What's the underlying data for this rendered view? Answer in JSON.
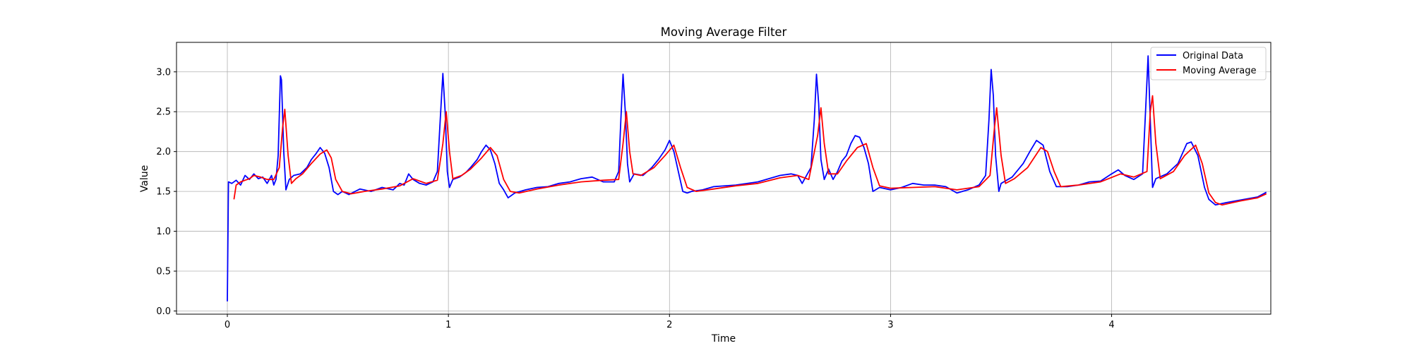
{
  "chart_data": {
    "type": "line",
    "title": "Moving Average Filter",
    "xlabel": "Time",
    "ylabel": "Value",
    "xlim": [
      -0.23,
      4.72
    ],
    "ylim": [
      -0.04,
      3.37
    ],
    "xticks": [
      0,
      1,
      2,
      3,
      4
    ],
    "yticks": [
      0.0,
      0.5,
      1.0,
      1.5,
      2.0,
      2.5,
      3.0
    ],
    "xtick_labels": [
      "0",
      "1",
      "2",
      "3",
      "4"
    ],
    "ytick_labels": [
      "0.0",
      "0.5",
      "1.0",
      "1.5",
      "2.0",
      "2.5",
      "3.0"
    ],
    "grid": true,
    "legend_position": "top-right",
    "colors": {
      "original": "#0000ff",
      "moving_average": "#ff0000"
    },
    "series": [
      {
        "name": "Original Data",
        "color": "#0000ff",
        "points": [
          [
            0.0,
            0.12
          ],
          [
            0.005,
            1.62
          ],
          [
            0.02,
            1.6
          ],
          [
            0.04,
            1.64
          ],
          [
            0.06,
            1.58
          ],
          [
            0.08,
            1.7
          ],
          [
            0.1,
            1.65
          ],
          [
            0.12,
            1.72
          ],
          [
            0.14,
            1.66
          ],
          [
            0.16,
            1.68
          ],
          [
            0.18,
            1.6
          ],
          [
            0.2,
            1.7
          ],
          [
            0.21,
            1.58
          ],
          [
            0.22,
            1.65
          ],
          [
            0.23,
            1.95
          ],
          [
            0.24,
            2.95
          ],
          [
            0.245,
            2.9
          ],
          [
            0.255,
            2.0
          ],
          [
            0.265,
            1.52
          ],
          [
            0.28,
            1.65
          ],
          [
            0.3,
            1.7
          ],
          [
            0.33,
            1.72
          ],
          [
            0.36,
            1.8
          ],
          [
            0.38,
            1.9
          ],
          [
            0.4,
            1.97
          ],
          [
            0.42,
            2.05
          ],
          [
            0.44,
            1.98
          ],
          [
            0.46,
            1.8
          ],
          [
            0.48,
            1.5
          ],
          [
            0.5,
            1.46
          ],
          [
            0.52,
            1.5
          ],
          [
            0.55,
            1.46
          ],
          [
            0.6,
            1.53
          ],
          [
            0.65,
            1.5
          ],
          [
            0.7,
            1.55
          ],
          [
            0.75,
            1.52
          ],
          [
            0.78,
            1.6
          ],
          [
            0.8,
            1.58
          ],
          [
            0.82,
            1.72
          ],
          [
            0.84,
            1.65
          ],
          [
            0.87,
            1.6
          ],
          [
            0.9,
            1.58
          ],
          [
            0.93,
            1.62
          ],
          [
            0.95,
            1.75
          ],
          [
            0.965,
            2.5
          ],
          [
            0.975,
            2.98
          ],
          [
            0.985,
            2.5
          ],
          [
            0.995,
            1.75
          ],
          [
            1.005,
            1.55
          ],
          [
            1.02,
            1.65
          ],
          [
            1.05,
            1.68
          ],
          [
            1.08,
            1.74
          ],
          [
            1.1,
            1.8
          ],
          [
            1.13,
            1.9
          ],
          [
            1.15,
            2.0
          ],
          [
            1.17,
            2.08
          ],
          [
            1.19,
            2.02
          ],
          [
            1.21,
            1.85
          ],
          [
            1.23,
            1.6
          ],
          [
            1.25,
            1.52
          ],
          [
            1.27,
            1.42
          ],
          [
            1.3,
            1.48
          ],
          [
            1.35,
            1.52
          ],
          [
            1.4,
            1.55
          ],
          [
            1.45,
            1.56
          ],
          [
            1.5,
            1.6
          ],
          [
            1.55,
            1.62
          ],
          [
            1.6,
            1.66
          ],
          [
            1.65,
            1.68
          ],
          [
            1.7,
            1.62
          ],
          [
            1.75,
            1.62
          ],
          [
            1.77,
            1.75
          ],
          [
            1.78,
            2.4
          ],
          [
            1.79,
            2.97
          ],
          [
            1.8,
            2.5
          ],
          [
            1.81,
            1.85
          ],
          [
            1.82,
            1.62
          ],
          [
            1.84,
            1.72
          ],
          [
            1.88,
            1.7
          ],
          [
            1.92,
            1.8
          ],
          [
            1.95,
            1.9
          ],
          [
            1.98,
            2.02
          ],
          [
            2.0,
            2.14
          ],
          [
            2.02,
            2.0
          ],
          [
            2.04,
            1.75
          ],
          [
            2.06,
            1.5
          ],
          [
            2.08,
            1.48
          ],
          [
            2.1,
            1.5
          ],
          [
            2.15,
            1.52
          ],
          [
            2.2,
            1.56
          ],
          [
            2.3,
            1.58
          ],
          [
            2.4,
            1.62
          ],
          [
            2.5,
            1.7
          ],
          [
            2.55,
            1.72
          ],
          [
            2.58,
            1.7
          ],
          [
            2.6,
            1.6
          ],
          [
            2.62,
            1.7
          ],
          [
            2.64,
            1.8
          ],
          [
            2.655,
            2.4
          ],
          [
            2.665,
            2.97
          ],
          [
            2.675,
            2.6
          ],
          [
            2.685,
            1.9
          ],
          [
            2.7,
            1.65
          ],
          [
            2.72,
            1.78
          ],
          [
            2.74,
            1.65
          ],
          [
            2.76,
            1.75
          ],
          [
            2.78,
            1.88
          ],
          [
            2.8,
            1.95
          ],
          [
            2.82,
            2.1
          ],
          [
            2.84,
            2.2
          ],
          [
            2.86,
            2.18
          ],
          [
            2.88,
            2.05
          ],
          [
            2.9,
            1.85
          ],
          [
            2.92,
            1.5
          ],
          [
            2.95,
            1.55
          ],
          [
            3.0,
            1.52
          ],
          [
            3.05,
            1.55
          ],
          [
            3.1,
            1.6
          ],
          [
            3.15,
            1.58
          ],
          [
            3.2,
            1.58
          ],
          [
            3.25,
            1.56
          ],
          [
            3.3,
            1.48
          ],
          [
            3.35,
            1.52
          ],
          [
            3.4,
            1.58
          ],
          [
            3.43,
            1.7
          ],
          [
            3.445,
            2.4
          ],
          [
            3.455,
            3.03
          ],
          [
            3.465,
            2.7
          ],
          [
            3.475,
            1.95
          ],
          [
            3.49,
            1.5
          ],
          [
            3.5,
            1.6
          ],
          [
            3.55,
            1.68
          ],
          [
            3.6,
            1.85
          ],
          [
            3.63,
            2.0
          ],
          [
            3.66,
            2.14
          ],
          [
            3.69,
            2.08
          ],
          [
            3.72,
            1.75
          ],
          [
            3.75,
            1.56
          ],
          [
            3.8,
            1.56
          ],
          [
            3.85,
            1.58
          ],
          [
            3.9,
            1.62
          ],
          [
            3.95,
            1.63
          ],
          [
            4.0,
            1.72
          ],
          [
            4.03,
            1.77
          ],
          [
            4.06,
            1.7
          ],
          [
            4.1,
            1.65
          ],
          [
            4.14,
            1.72
          ],
          [
            4.155,
            2.6
          ],
          [
            4.165,
            3.2
          ],
          [
            4.175,
            2.4
          ],
          [
            4.185,
            1.55
          ],
          [
            4.2,
            1.66
          ],
          [
            4.25,
            1.72
          ],
          [
            4.3,
            1.85
          ],
          [
            4.34,
            2.1
          ],
          [
            4.36,
            2.12
          ],
          [
            4.39,
            1.95
          ],
          [
            4.42,
            1.55
          ],
          [
            4.44,
            1.4
          ],
          [
            4.47,
            1.33
          ],
          [
            4.52,
            1.36
          ],
          [
            4.6,
            1.4
          ],
          [
            4.66,
            1.43
          ],
          [
            4.7,
            1.49
          ]
        ]
      },
      {
        "name": "Moving Average",
        "color": "#ff0000",
        "points": [
          [
            0.03,
            1.4
          ],
          [
            0.04,
            1.58
          ],
          [
            0.06,
            1.62
          ],
          [
            0.08,
            1.64
          ],
          [
            0.1,
            1.66
          ],
          [
            0.12,
            1.7
          ],
          [
            0.15,
            1.68
          ],
          [
            0.18,
            1.65
          ],
          [
            0.21,
            1.65
          ],
          [
            0.235,
            1.8
          ],
          [
            0.25,
            2.3
          ],
          [
            0.26,
            2.53
          ],
          [
            0.275,
            1.95
          ],
          [
            0.29,
            1.6
          ],
          [
            0.31,
            1.66
          ],
          [
            0.34,
            1.72
          ],
          [
            0.38,
            1.85
          ],
          [
            0.42,
            1.97
          ],
          [
            0.45,
            2.02
          ],
          [
            0.47,
            1.92
          ],
          [
            0.49,
            1.65
          ],
          [
            0.52,
            1.5
          ],
          [
            0.56,
            1.47
          ],
          [
            0.62,
            1.5
          ],
          [
            0.7,
            1.53
          ],
          [
            0.78,
            1.57
          ],
          [
            0.84,
            1.66
          ],
          [
            0.9,
            1.6
          ],
          [
            0.95,
            1.64
          ],
          [
            0.975,
            2.1
          ],
          [
            0.99,
            2.5
          ],
          [
            1.005,
            2.0
          ],
          [
            1.02,
            1.66
          ],
          [
            1.06,
            1.7
          ],
          [
            1.1,
            1.78
          ],
          [
            1.15,
            1.92
          ],
          [
            1.19,
            2.05
          ],
          [
            1.22,
            1.95
          ],
          [
            1.25,
            1.65
          ],
          [
            1.28,
            1.5
          ],
          [
            1.32,
            1.48
          ],
          [
            1.4,
            1.53
          ],
          [
            1.5,
            1.58
          ],
          [
            1.6,
            1.62
          ],
          [
            1.7,
            1.64
          ],
          [
            1.77,
            1.65
          ],
          [
            1.79,
            2.1
          ],
          [
            1.805,
            2.5
          ],
          [
            1.82,
            2.0
          ],
          [
            1.835,
            1.72
          ],
          [
            1.87,
            1.7
          ],
          [
            1.93,
            1.8
          ],
          [
            1.98,
            1.95
          ],
          [
            2.02,
            2.08
          ],
          [
            2.05,
            1.8
          ],
          [
            2.08,
            1.55
          ],
          [
            2.12,
            1.5
          ],
          [
            2.2,
            1.53
          ],
          [
            2.3,
            1.57
          ],
          [
            2.4,
            1.6
          ],
          [
            2.5,
            1.67
          ],
          [
            2.58,
            1.7
          ],
          [
            2.63,
            1.65
          ],
          [
            2.67,
            2.2
          ],
          [
            2.685,
            2.55
          ],
          [
            2.7,
            2.1
          ],
          [
            2.72,
            1.72
          ],
          [
            2.76,
            1.72
          ],
          [
            2.8,
            1.88
          ],
          [
            2.85,
            2.05
          ],
          [
            2.89,
            2.1
          ],
          [
            2.92,
            1.8
          ],
          [
            2.95,
            1.57
          ],
          [
            3.0,
            1.54
          ],
          [
            3.1,
            1.55
          ],
          [
            3.2,
            1.56
          ],
          [
            3.3,
            1.52
          ],
          [
            3.4,
            1.56
          ],
          [
            3.45,
            1.7
          ],
          [
            3.47,
            2.3
          ],
          [
            3.48,
            2.55
          ],
          [
            3.5,
            1.95
          ],
          [
            3.52,
            1.6
          ],
          [
            3.56,
            1.66
          ],
          [
            3.62,
            1.8
          ],
          [
            3.68,
            2.05
          ],
          [
            3.71,
            2.0
          ],
          [
            3.74,
            1.75
          ],
          [
            3.77,
            1.56
          ],
          [
            3.85,
            1.58
          ],
          [
            3.95,
            1.62
          ],
          [
            4.04,
            1.72
          ],
          [
            4.1,
            1.68
          ],
          [
            4.16,
            1.75
          ],
          [
            4.175,
            2.5
          ],
          [
            4.185,
            2.7
          ],
          [
            4.2,
            2.1
          ],
          [
            4.22,
            1.66
          ],
          [
            4.28,
            1.75
          ],
          [
            4.33,
            1.95
          ],
          [
            4.38,
            2.08
          ],
          [
            4.41,
            1.85
          ],
          [
            4.44,
            1.48
          ],
          [
            4.47,
            1.36
          ],
          [
            4.5,
            1.33
          ],
          [
            4.58,
            1.38
          ],
          [
            4.66,
            1.42
          ],
          [
            4.7,
            1.47
          ]
        ]
      }
    ]
  }
}
